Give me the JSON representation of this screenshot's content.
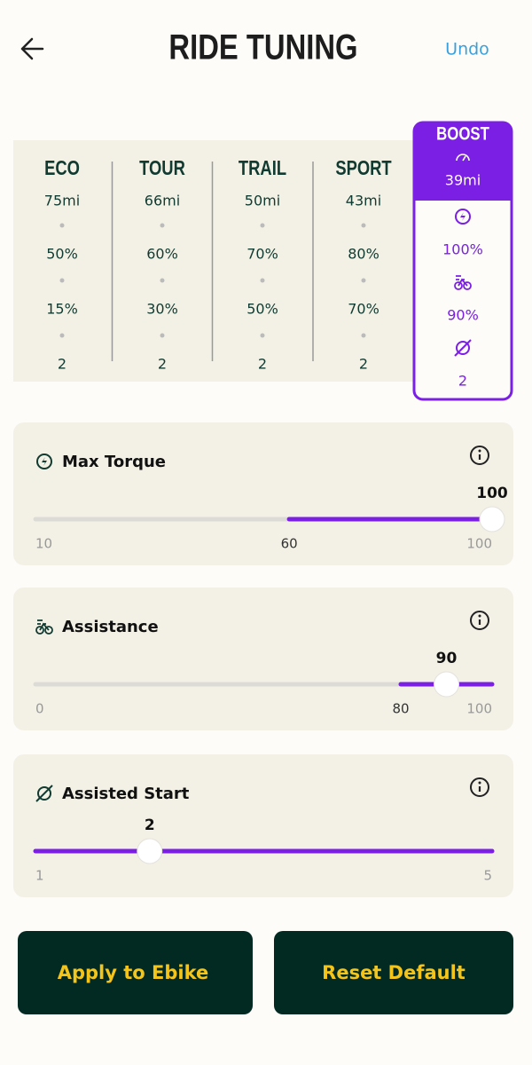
{
  "header": {
    "title": "RIDE TUNING",
    "undo": "Undo"
  },
  "modes": [
    {
      "name": "ECO",
      "range": "75mi",
      "torque": "50%",
      "assistance": "15%",
      "start": "2"
    },
    {
      "name": "TOUR",
      "range": "66mi",
      "torque": "60%",
      "assistance": "30%",
      "start": "2"
    },
    {
      "name": "TRAIL",
      "range": "50mi",
      "torque": "70%",
      "assistance": "50%",
      "start": "2"
    },
    {
      "name": "SPORT",
      "range": "43mi",
      "torque": "80%",
      "assistance": "70%",
      "start": "2"
    },
    {
      "name": "BOOST",
      "range": "39mi",
      "torque": "100%",
      "assistance": "90%",
      "start": "2"
    }
  ],
  "sliders": [
    {
      "label": "Max Torque",
      "value": 100,
      "scale": [
        10,
        60,
        100
      ]
    },
    {
      "label": "Assistance",
      "value": 90,
      "scale": [
        0,
        80,
        100
      ]
    },
    {
      "label": "Assisted Start",
      "value": 2,
      "scale": [
        1,
        5
      ]
    }
  ],
  "buttons": {
    "apply": "Apply to Ebike",
    "reset": "Reset Default"
  }
}
